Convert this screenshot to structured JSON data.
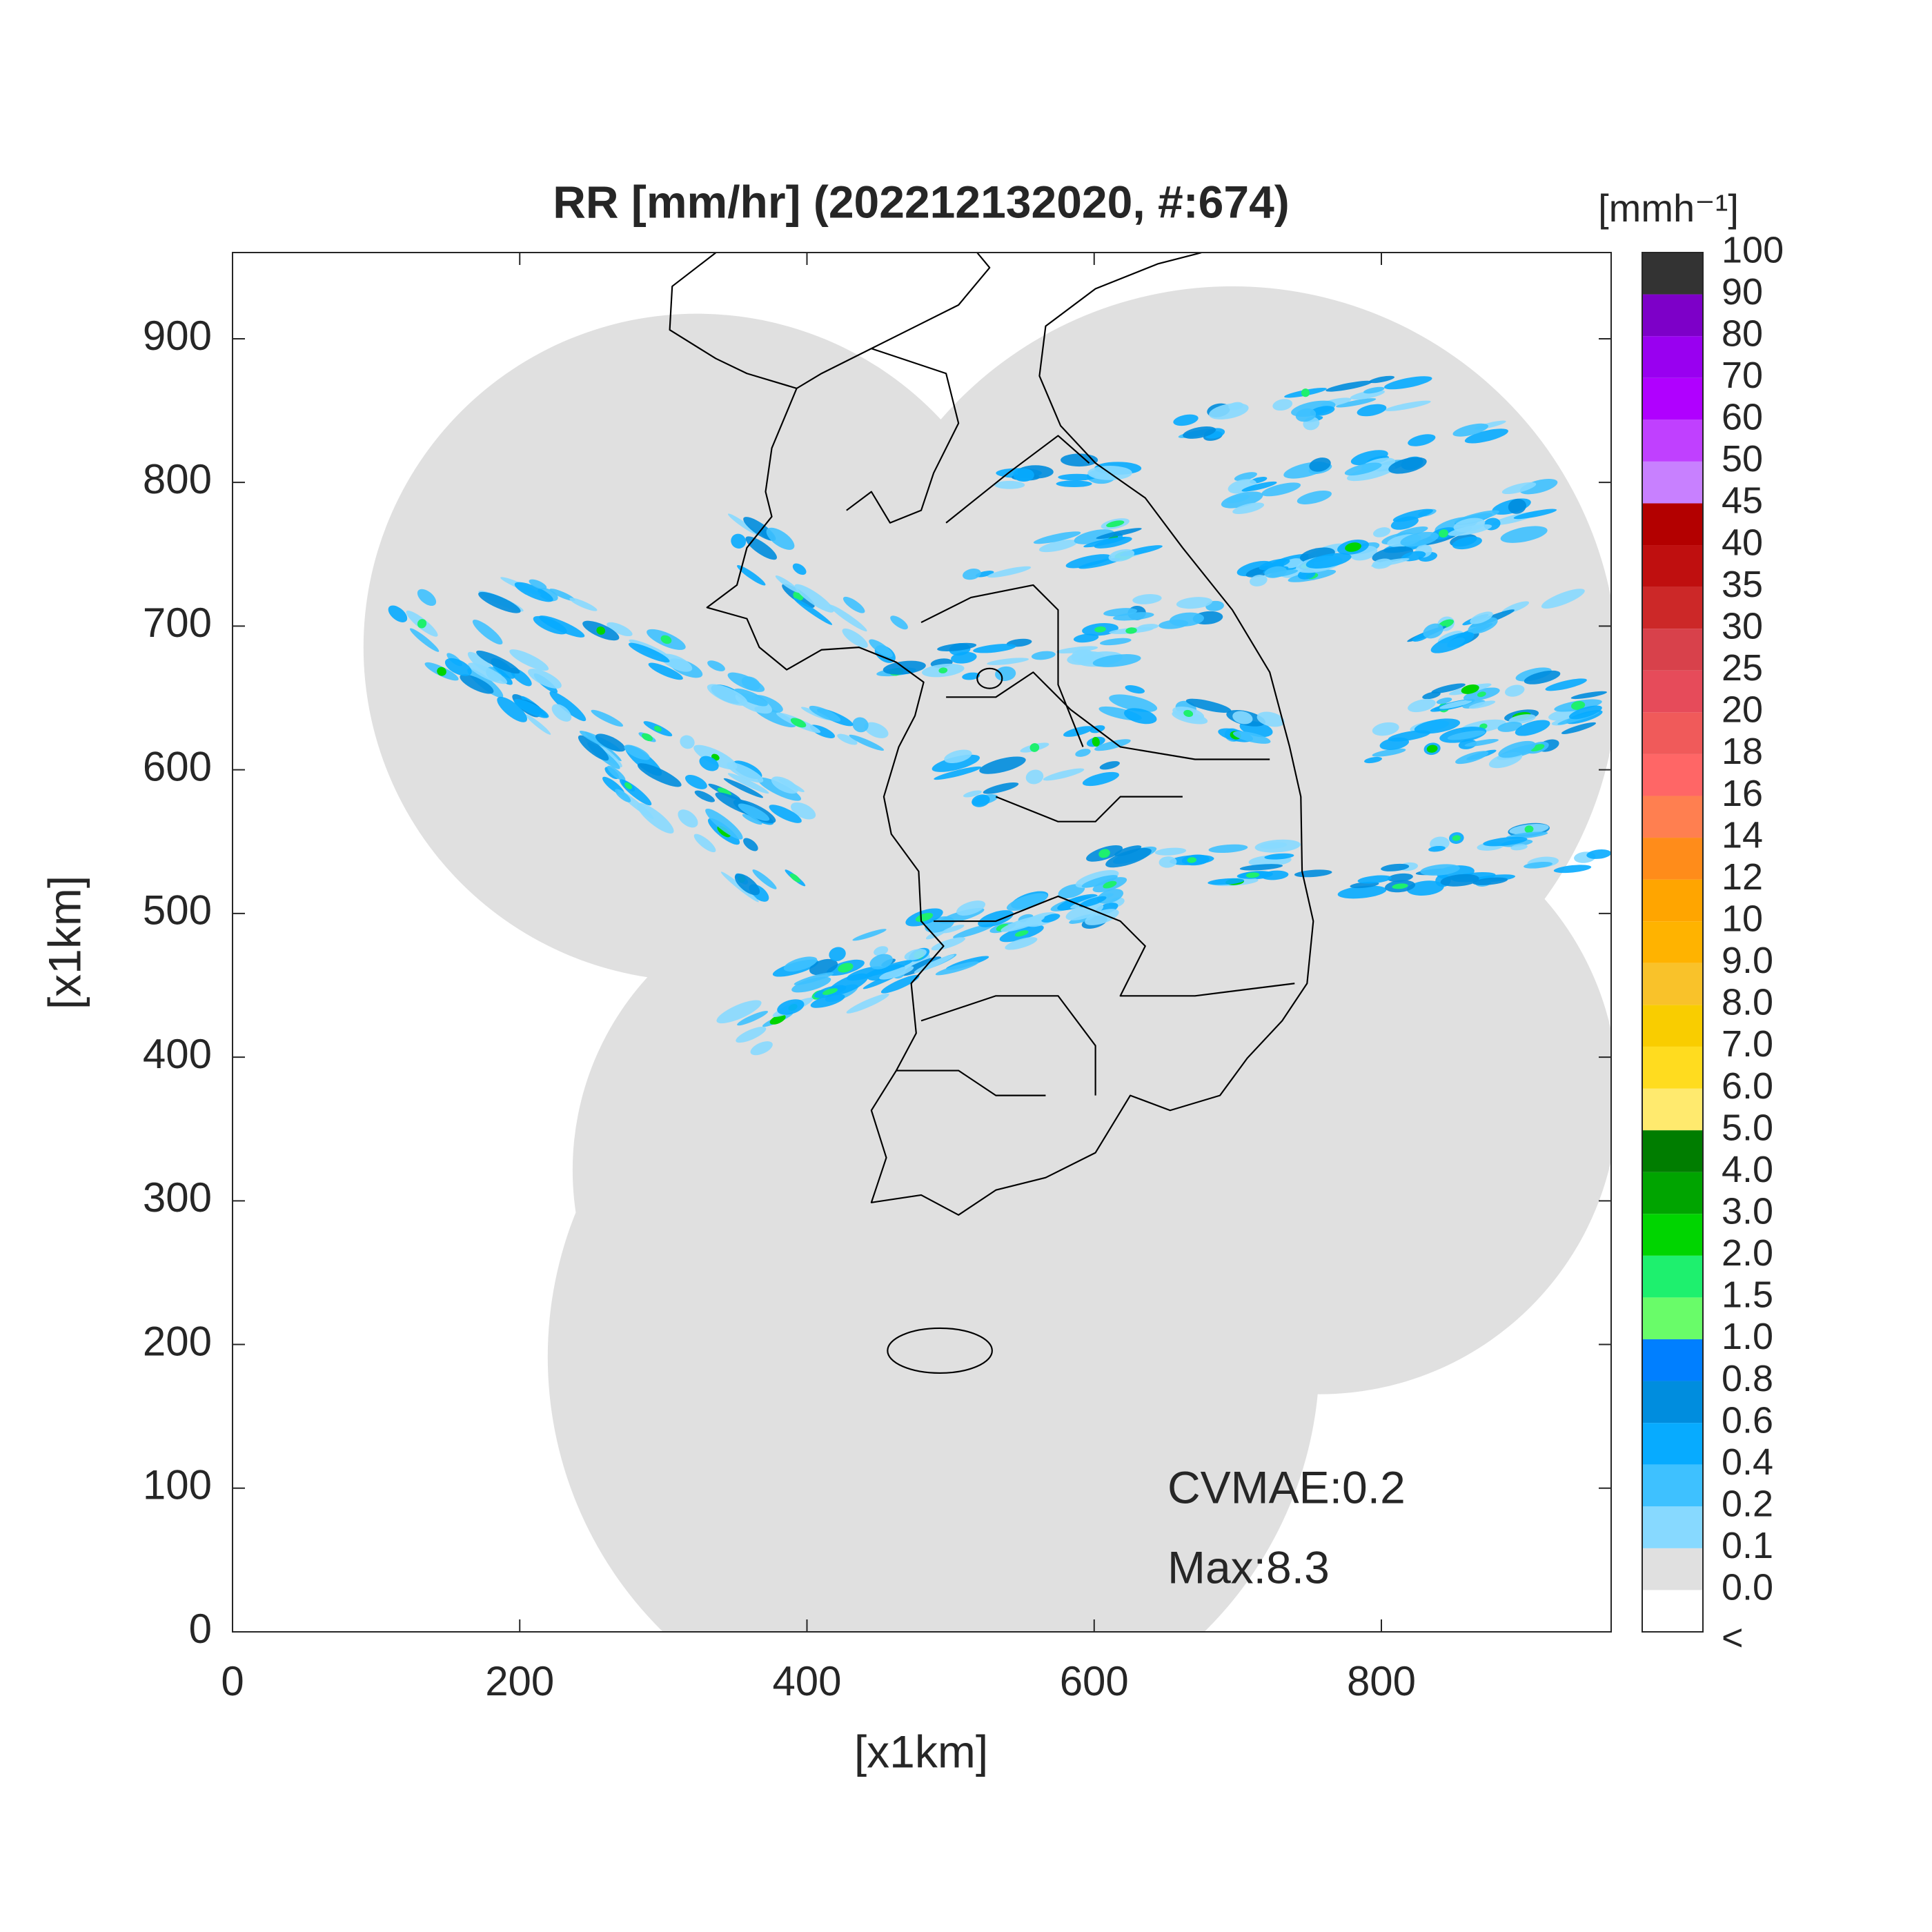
{
  "chart_data": {
    "type": "radar-map",
    "title": "RR [mm/hr] (202212132020, #:674)",
    "x_label": "[x1km]",
    "y_label": "[x1km]",
    "xlim": [
      0,
      960
    ],
    "ylim": [
      0,
      960
    ],
    "xticks": [
      0,
      200,
      400,
      600,
      800
    ],
    "yticks": [
      0,
      100,
      200,
      300,
      400,
      500,
      600,
      700,
      800,
      900
    ],
    "annotations": [
      "CVMAE:0.2",
      "Max:8.3"
    ],
    "colorbar": {
      "title": "[mmh⁻¹]",
      "labels": [
        "<",
        "0.0",
        "0.1",
        "0.2",
        "0.4",
        "0.6",
        "0.8",
        "1.0",
        "1.5",
        "2.0",
        "3.0",
        "4.0",
        "5.0",
        "6.0",
        "7.0",
        "8.0",
        "9.0",
        "10",
        "12",
        "14",
        "16",
        "18",
        "20",
        "25",
        "30",
        "35",
        "40",
        "45",
        "50",
        "60",
        "70",
        "80",
        "90",
        "100"
      ],
      "colors": [
        "#ffffff",
        "#e0e0e0",
        "#87d9ff",
        "#3ec1ff",
        "#07abff",
        "#008dde",
        "#007fff",
        "#69fc69",
        "#1ef06e",
        "#00d500",
        "#00a400",
        "#007d00",
        "#ffea6e",
        "#ffdc1f",
        "#f9cd00",
        "#f9c22a",
        "#ffb300",
        "#ffa500",
        "#ff8c1a",
        "#ff7f50",
        "#ff6666",
        "#f05a5a",
        "#e64b5a",
        "#d8414b",
        "#cc2828",
        "#bf0f0f",
        "#b30000",
        "#c880ff",
        "#c040ff",
        "#b000ff",
        "#9900f0",
        "#7d00c8",
        "#333333"
      ]
    }
  }
}
